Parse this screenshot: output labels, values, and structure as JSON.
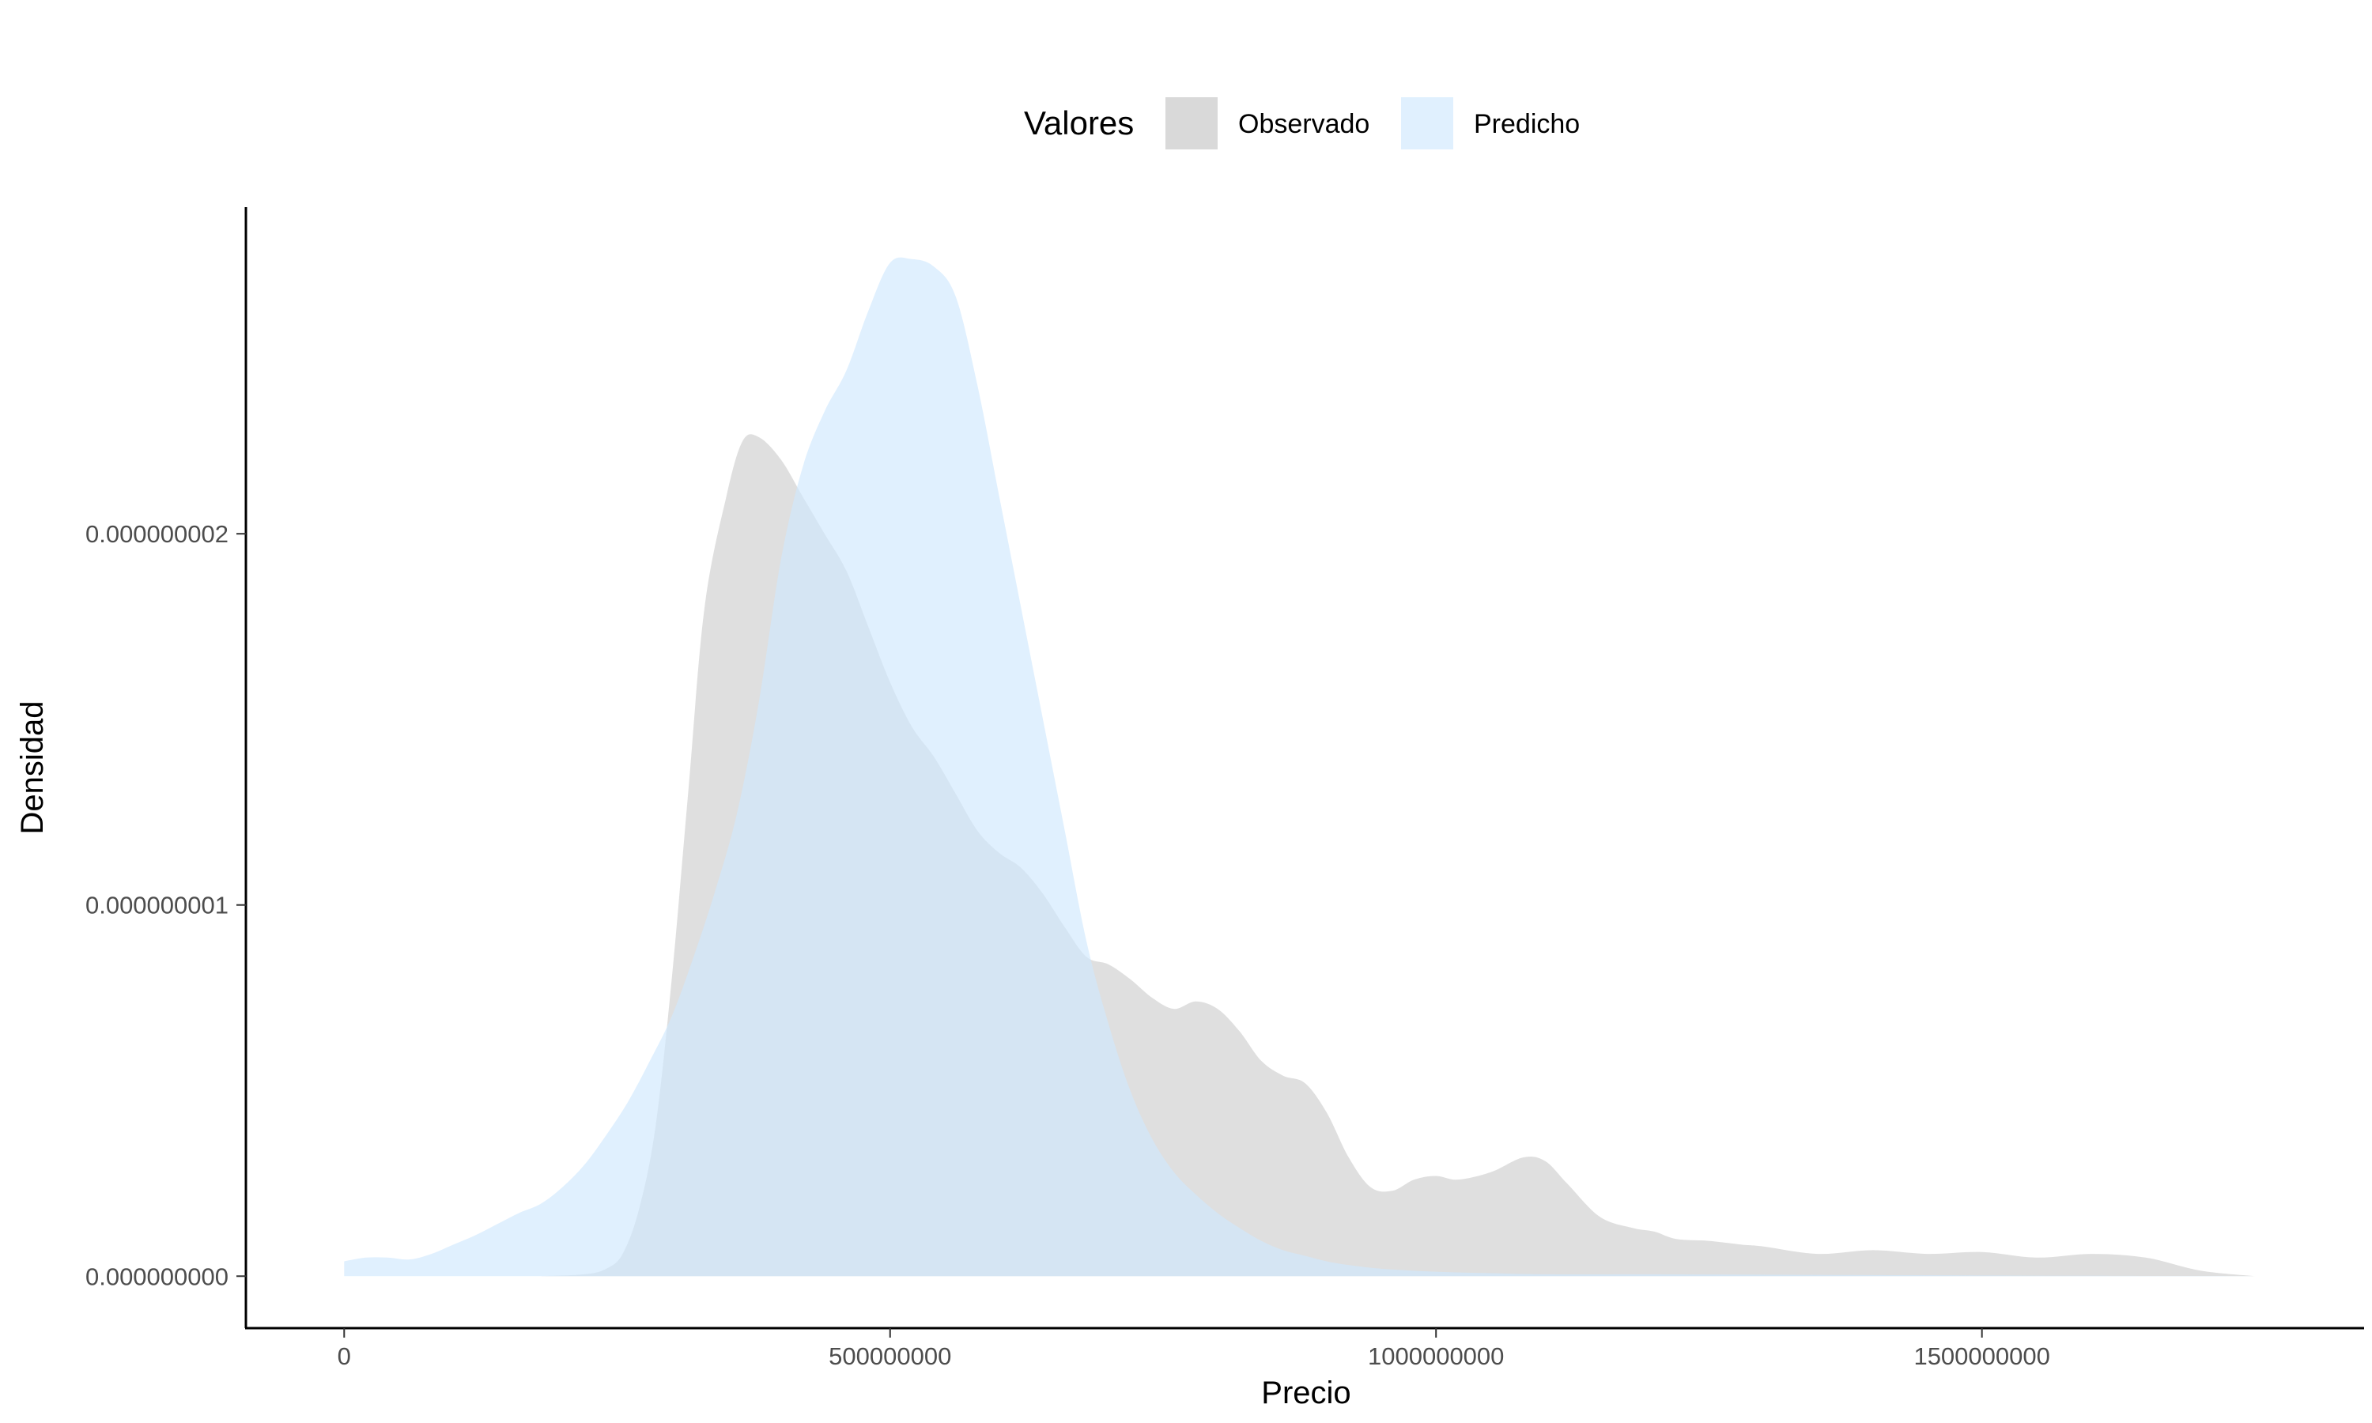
{
  "chart_data": {
    "type": "area",
    "subtype": "density",
    "title": "",
    "xlabel": "Precio",
    "ylabel": "Densidad",
    "xlim": [
      -90000000,
      1850000000
    ],
    "ylim": [
      -1.4e-10,
      2.88e-09
    ],
    "x_ticks": [
      0,
      500000000,
      1000000000,
      1500000000
    ],
    "x_tick_labels": [
      "0",
      "500000000",
      "1000000000",
      "1500000000"
    ],
    "y_ticks": [
      0,
      1e-09,
      2e-09
    ],
    "y_tick_labels": [
      "0.000000000",
      "0.000000001",
      "0.000000002"
    ],
    "grid": false,
    "legend": {
      "title": "Valores",
      "position": "top",
      "entries": [
        "Observado",
        "Predicho"
      ]
    },
    "series": [
      {
        "name": "Observado",
        "color": "#d9d9d9",
        "opacity": 0.85,
        "x": [
          180000000,
          220000000,
          240000000,
          255000000,
          270000000,
          285000000,
          300000000,
          315000000,
          330000000,
          350000000,
          365000000,
          380000000,
          400000000,
          420000000,
          440000000,
          460000000,
          480000000,
          500000000,
          520000000,
          540000000,
          560000000,
          580000000,
          600000000,
          620000000,
          640000000,
          660000000,
          680000000,
          700000000,
          720000000,
          740000000,
          760000000,
          780000000,
          800000000,
          820000000,
          840000000,
          860000000,
          880000000,
          900000000,
          920000000,
          940000000,
          960000000,
          980000000,
          1000000000,
          1020000000,
          1050000000,
          1080000000,
          1100000000,
          1120000000,
          1150000000,
          1180000000,
          1200000000,
          1220000000,
          1250000000,
          1280000000,
          1300000000,
          1350000000,
          1400000000,
          1450000000,
          1500000000,
          1550000000,
          1600000000,
          1650000000,
          1700000000,
          1750000000
        ],
        "y": [
          0,
          5e-12,
          2e-11,
          6e-11,
          1.8e-10,
          4e-10,
          8e-10,
          1.3e-09,
          1.8e-09,
          2.1e-09,
          2.25e-09,
          2.26e-09,
          2.2e-09,
          2.1e-09,
          2e-09,
          1.9e-09,
          1.75e-09,
          1.6e-09,
          1.48e-09,
          1.4e-09,
          1.3e-09,
          1.2e-09,
          1.14e-09,
          1.1e-09,
          1.03e-09,
          9.4e-10,
          8.6e-10,
          8.4e-10,
          8e-10,
          7.5e-10,
          7.2e-10,
          7.4e-10,
          7.2e-10,
          6.6e-10,
          5.8e-10,
          5.4e-10,
          5.2e-10,
          4.4e-10,
          3.2e-10,
          2.4e-10,
          2.3e-10,
          2.6e-10,
          2.7e-10,
          2.6e-10,
          2.8e-10,
          3.2e-10,
          3.1e-10,
          2.5e-10,
          1.6e-10,
          1.3e-10,
          1.2e-10,
          1e-10,
          9.5e-11,
          8.5e-11,
          8e-11,
          6e-11,
          7e-11,
          6e-11,
          6.5e-11,
          5e-11,
          6e-11,
          5e-11,
          1.5e-11,
          0.0
        ]
      },
      {
        "name": "Predicho",
        "color": "#cfe8fe",
        "opacity": 0.65,
        "x": [
          0,
          20000000,
          40000000,
          60000000,
          80000000,
          100000000,
          120000000,
          140000000,
          160000000,
          180000000,
          200000000,
          220000000,
          240000000,
          260000000,
          280000000,
          300000000,
          320000000,
          340000000,
          360000000,
          380000000,
          400000000,
          420000000,
          440000000,
          460000000,
          480000000,
          500000000,
          520000000,
          540000000,
          560000000,
          580000000,
          600000000,
          620000000,
          640000000,
          660000000,
          680000000,
          700000000,
          720000000,
          740000000,
          760000000,
          780000000,
          800000000,
          820000000,
          840000000,
          860000000,
          880000000,
          900000000,
          920000000,
          950000000,
          1000000000,
          1050000000,
          1100000000,
          1200000000,
          1300000000,
          1400000000,
          1500000000,
          1600000000,
          1700000000,
          1750000000
        ],
        "y": [
          4e-11,
          5e-11,
          5e-11,
          4.5e-11,
          6e-11,
          8.5e-11,
          1.1e-10,
          1.4e-10,
          1.7e-10,
          1.95e-10,
          2.4e-10,
          3e-10,
          3.8e-10,
          4.7e-10,
          5.8e-10,
          7e-10,
          8.6e-10,
          1.04e-09,
          1.25e-09,
          1.55e-09,
          1.93e-09,
          2.18e-09,
          2.33e-09,
          2.44e-09,
          2.6e-09,
          2.73e-09,
          2.74e-09,
          2.72e-09,
          2.64e-09,
          2.4e-09,
          2.1e-09,
          1.8e-09,
          1.5e-09,
          1.2e-09,
          9e-10,
          6.8e-10,
          5e-10,
          3.7e-10,
          2.8e-10,
          2.2e-10,
          1.7e-10,
          1.3e-10,
          9.5e-11,
          7e-11,
          5.5e-11,
          4e-11,
          3e-11,
          2e-11,
          1.2e-11,
          8e-12,
          5e-12,
          5e-12,
          4e-12,
          3e-12,
          2e-12,
          1e-12,
          5e-13,
          0
        ]
      }
    ]
  }
}
